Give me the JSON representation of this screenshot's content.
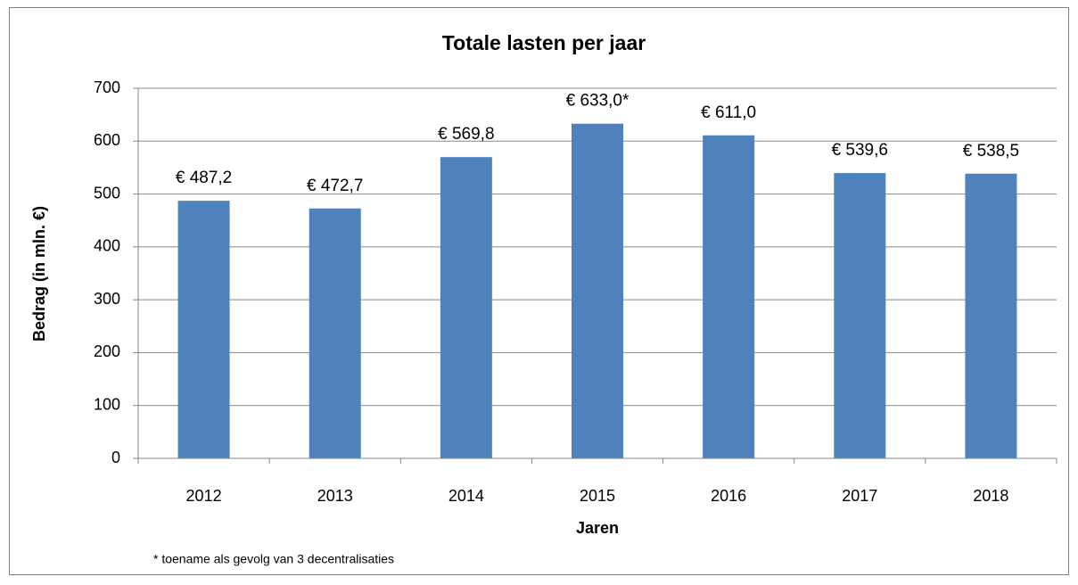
{
  "chart_data": {
    "type": "bar",
    "title": "Totale lasten per jaar",
    "x_label": "Jaren",
    "y_label": "Bedrag (in mln. €)",
    "footnote": "* toename als gevolg van 3 decentralisaties",
    "categories": [
      "2012",
      "2013",
      "2014",
      "2015",
      "2016",
      "2017",
      "2018"
    ],
    "values": [
      487.2,
      472.7,
      569.8,
      633.0,
      611.0,
      539.6,
      538.5
    ],
    "value_labels": [
      "€ 487,2",
      "€ 472,7",
      "€ 569,8",
      "€ 633,0*",
      "€ 611,0",
      "€ 539,6",
      "€ 538,5"
    ],
    "color": "#4f81bd",
    "ylim": [
      0,
      700
    ],
    "yticks": [
      0,
      100,
      200,
      300,
      400,
      500,
      600,
      700
    ],
    "grid": true
  }
}
